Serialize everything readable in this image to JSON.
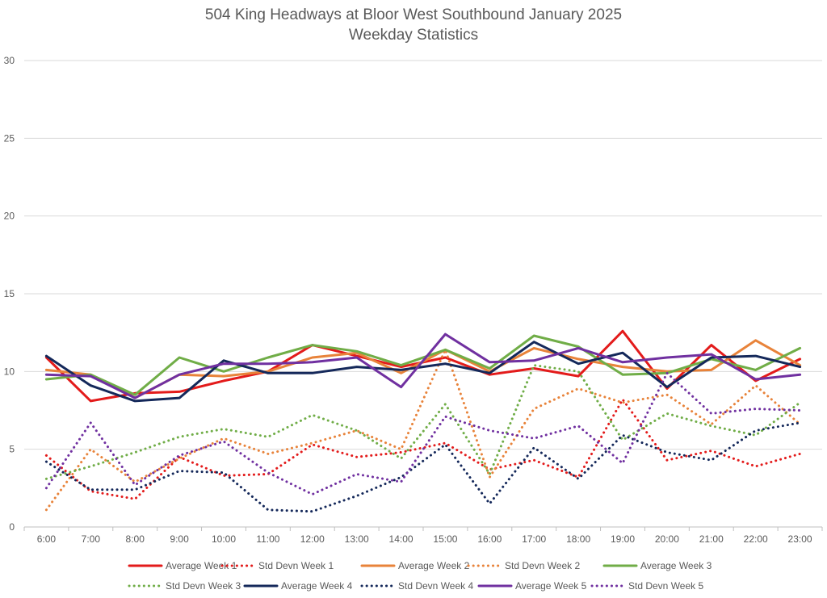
{
  "chart_data": {
    "type": "line",
    "title": "504 King Headways at Bloor West Southbound January 2025",
    "subtitle": "Weekday Statistics",
    "xlabel": "",
    "ylabel": "",
    "ylim": [
      0,
      30
    ],
    "yticks": [
      0,
      5,
      10,
      15,
      20,
      25,
      30
    ],
    "grid": true,
    "legend_position": "bottom",
    "categories": [
      "6:00",
      "7:00",
      "8:00",
      "9:00",
      "10:00",
      "11:00",
      "12:00",
      "13:00",
      "14:00",
      "15:00",
      "16:00",
      "17:00",
      "18:00",
      "19:00",
      "20:00",
      "21:00",
      "22:00",
      "23:00"
    ],
    "series": [
      {
        "name": "Average Week 1",
        "color": "#e31b1b",
        "dash": "solid",
        "values": [
          10.9,
          8.1,
          8.6,
          8.7,
          9.4,
          10.0,
          11.7,
          11.0,
          10.3,
          10.9,
          9.8,
          10.2,
          9.7,
          12.6,
          8.9,
          11.7,
          9.4,
          10.8
        ]
      },
      {
        "name": "Std Devn Week 1",
        "color": "#e31b1b",
        "dash": "dotted",
        "values": [
          4.6,
          2.3,
          1.8,
          4.5,
          3.3,
          3.4,
          5.3,
          4.5,
          4.8,
          5.4,
          3.7,
          4.3,
          3.2,
          8.2,
          4.3,
          4.9,
          3.9,
          4.7
        ]
      },
      {
        "name": "Average Week 2",
        "color": "#e8833a",
        "dash": "solid",
        "values": [
          10.1,
          9.8,
          8.3,
          9.8,
          9.7,
          10.0,
          10.9,
          11.2,
          9.9,
          11.4,
          10.0,
          11.5,
          10.8,
          10.3,
          10.0,
          10.1,
          12.0,
          10.4
        ]
      },
      {
        "name": "Std Devn Week 2",
        "color": "#e8833a",
        "dash": "dotted",
        "values": [
          1.1,
          5.0,
          2.9,
          4.4,
          5.7,
          4.7,
          5.4,
          6.2,
          5.0,
          11.4,
          3.2,
          7.6,
          8.9,
          8.0,
          8.5,
          6.6,
          9.1,
          6.6
        ]
      },
      {
        "name": "Average Week 3",
        "color": "#70ad47",
        "dash": "solid",
        "values": [
          9.5,
          9.8,
          8.5,
          10.9,
          10.0,
          10.9,
          11.7,
          11.3,
          10.4,
          11.4,
          10.2,
          12.3,
          11.6,
          9.8,
          9.9,
          10.8,
          10.1,
          11.5
        ]
      },
      {
        "name": "Std Devn Week 3",
        "color": "#70ad47",
        "dash": "dotted",
        "values": [
          3.1,
          3.9,
          4.8,
          5.8,
          6.3,
          5.8,
          7.2,
          6.2,
          4.4,
          7.9,
          3.4,
          10.4,
          10.0,
          5.6,
          7.3,
          6.5,
          5.9,
          8.0
        ]
      },
      {
        "name": "Average Week 4",
        "color": "#14285a",
        "dash": "solid",
        "values": [
          11.0,
          9.1,
          8.1,
          8.3,
          10.7,
          9.9,
          9.9,
          10.3,
          10.1,
          10.5,
          9.9,
          11.9,
          10.5,
          11.2,
          9.0,
          10.9,
          11.0,
          10.3
        ]
      },
      {
        "name": "Std Devn Week 4",
        "color": "#14285a",
        "dash": "dotted",
        "values": [
          4.2,
          2.4,
          2.4,
          3.6,
          3.5,
          1.1,
          1.0,
          2.0,
          3.2,
          5.3,
          1.5,
          5.1,
          3.1,
          5.9,
          4.8,
          4.3,
          6.2,
          6.7
        ]
      },
      {
        "name": "Average Week 5",
        "color": "#7030a0",
        "dash": "solid",
        "values": [
          9.8,
          9.7,
          8.3,
          9.8,
          10.5,
          10.5,
          10.6,
          10.9,
          9.0,
          12.4,
          10.6,
          10.7,
          11.5,
          10.6,
          10.9,
          11.1,
          9.5,
          9.8
        ]
      },
      {
        "name": "Std Devn Week 5",
        "color": "#7030a0",
        "dash": "dotted",
        "values": [
          2.5,
          6.7,
          2.7,
          4.6,
          5.5,
          3.5,
          2.1,
          3.4,
          2.9,
          7.1,
          6.2,
          5.7,
          6.5,
          4.1,
          9.9,
          7.3,
          7.6,
          7.5
        ]
      }
    ]
  },
  "colors": {
    "grid": "#d9d9d9",
    "axis": "#bfbfbf",
    "text": "#595959"
  }
}
